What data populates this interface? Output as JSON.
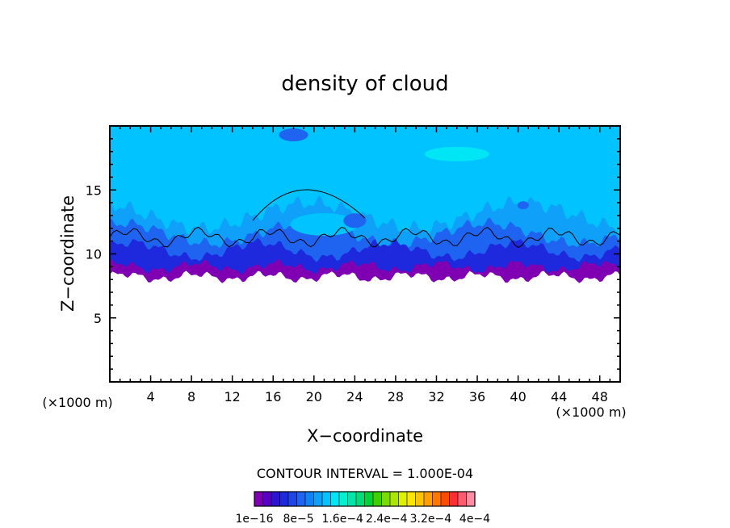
{
  "chart_data": {
    "type": "heatmap",
    "title": "density of cloud",
    "xlabel": "X−coordinate",
    "ylabel": "Z−coordinate",
    "x_unit_left": "(×1000 m)",
    "x_unit_right": "(×1000 m)",
    "xlim": [
      0,
      50
    ],
    "ylim": [
      0,
      20
    ],
    "x_ticks": [
      4,
      8,
      12,
      16,
      20,
      24,
      28,
      32,
      36,
      40,
      44,
      48
    ],
    "y_ticks": [
      5,
      10,
      15
    ],
    "contour_interval_text": "CONTOUR INTERVAL = 1.000E-04",
    "colorbar": {
      "colors": [
        "#7f00b2",
        "#5a00c8",
        "#2d14d2",
        "#1e28dc",
        "#1e46e6",
        "#1e64f0",
        "#0f82f5",
        "#0fa0fa",
        "#00c3ff",
        "#00e6f5",
        "#00f0d2",
        "#00e6aa",
        "#00dc78",
        "#00d23c",
        "#3cd200",
        "#78dc00",
        "#aae600",
        "#dcf000",
        "#ffe600",
        "#ffc300",
        "#ffa000",
        "#ff7800",
        "#ff4b00",
        "#ff2d2d",
        "#ff5a6e",
        "#ff8ca0"
      ],
      "labels": [
        "1e−16",
        "8e−5",
        "1.6e−4",
        "2.4e−4",
        "3.2e−4",
        "4e−4"
      ]
    },
    "bands": {
      "top_region": "#00c3ff",
      "upper_mid": "#0fa0fa",
      "mid": "#1e64f0",
      "lower": "#1e28dc",
      "base": "#7f00b2"
    }
  }
}
